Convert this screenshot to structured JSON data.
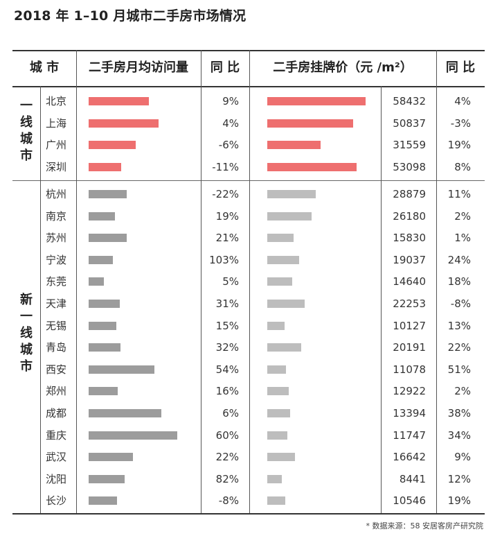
{
  "title": "2018 年 1–10 月城市二手房市场情况",
  "headers": {
    "city": "城 市",
    "visits": "二手房月均访问量",
    "yoy1": "同 比",
    "price": "二手房挂牌价（元 /m²）",
    "yoy2": "同 比"
  },
  "groups": {
    "tier1": "一线城市",
    "new_tier1": "新一线城市"
  },
  "source": "* 数据来源：58 安居客房产研究院",
  "chart_data": {
    "type": "table",
    "columns": [
      "城市",
      "二手房月均访问量",
      "同比",
      "二手房挂牌价（元/m²）",
      "同比"
    ],
    "tier1_rows": [
      {
        "city": "北京",
        "visits_rel": 0.68,
        "visits_yoy": "9%",
        "price": 58432,
        "price_yoy": "4%"
      },
      {
        "city": "上海",
        "visits_rel": 0.79,
        "visits_yoy": "4%",
        "price": 50837,
        "price_yoy": "-3%"
      },
      {
        "city": "广州",
        "visits_rel": 0.53,
        "visits_yoy": "-6%",
        "price": 31559,
        "price_yoy": "19%"
      },
      {
        "city": "深圳",
        "visits_rel": 0.37,
        "visits_yoy": "-11%",
        "price": 53098,
        "price_yoy": "8%"
      }
    ],
    "new_tier1_rows": [
      {
        "city": "杭州",
        "visits_rel": 0.43,
        "visits_yoy": "-22%",
        "price": 28879,
        "price_yoy": "11%"
      },
      {
        "city": "南京",
        "visits_rel": 0.3,
        "visits_yoy": "19%",
        "price": 26180,
        "price_yoy": "2%"
      },
      {
        "city": "苏州",
        "visits_rel": 0.43,
        "visits_yoy": "21%",
        "price": 15830,
        "price_yoy": "1%"
      },
      {
        "city": "宁波",
        "visits_rel": 0.27,
        "visits_yoy": "103%",
        "price": 19037,
        "price_yoy": "24%"
      },
      {
        "city": "东莞",
        "visits_rel": 0.17,
        "visits_yoy": "5%",
        "price": 14640,
        "price_yoy": "18%"
      },
      {
        "city": "天津",
        "visits_rel": 0.35,
        "visits_yoy": "31%",
        "price": 22253,
        "price_yoy": "-8%"
      },
      {
        "city": "无锡",
        "visits_rel": 0.31,
        "visits_yoy": "15%",
        "price": 10127,
        "price_yoy": "13%"
      },
      {
        "city": "青岛",
        "visits_rel": 0.36,
        "visits_yoy": "32%",
        "price": 20191,
        "price_yoy": "22%"
      },
      {
        "city": "西安",
        "visits_rel": 0.74,
        "visits_yoy": "54%",
        "price": 11078,
        "price_yoy": "51%"
      },
      {
        "city": "郑州",
        "visits_rel": 0.33,
        "visits_yoy": "16%",
        "price": 12922,
        "price_yoy": "2%"
      },
      {
        "city": "成都",
        "visits_rel": 0.82,
        "visits_yoy": "6%",
        "price": 13394,
        "price_yoy": "38%"
      },
      {
        "city": "重庆",
        "visits_rel": 1.0,
        "visits_yoy": "60%",
        "price": 11747,
        "price_yoy": "34%"
      },
      {
        "city": "武汉",
        "visits_rel": 0.5,
        "visits_yoy": "22%",
        "price": 16642,
        "price_yoy": "9%"
      },
      {
        "city": "沈阳",
        "visits_rel": 0.41,
        "visits_yoy": "82%",
        "price": 8441,
        "price_yoy": "12%"
      },
      {
        "city": "长沙",
        "visits_rel": 0.32,
        "visits_yoy": "-8%",
        "price": 10546,
        "price_yoy": "19%"
      }
    ],
    "price_axis_max": 58432,
    "colors": {
      "tier1_bar": "#ee6f6f",
      "visits_bar": "#9c9c9c",
      "price_bar": "#bdbdbd"
    }
  }
}
